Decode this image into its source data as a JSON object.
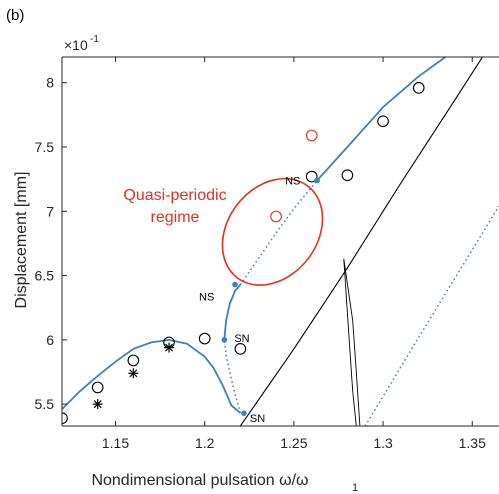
{
  "panel_label": "(b)",
  "chart_data": {
    "type": "scatter",
    "xlabel": "Nondimensional pulsation ω/ω",
    "xlabel_sub": "1",
    "ylabel": "Displacement [mm]",
    "y_multiplier": "×10",
    "y_multiplier_exp": "-1",
    "xlim": [
      1.12,
      1.365
    ],
    "ylim": [
      5.33,
      8.2
    ],
    "xticks": [
      1.15,
      1.2,
      1.25,
      1.3,
      1.35
    ],
    "xtick_labels": [
      "1.15",
      "1.2",
      "1.25",
      "1.3",
      "1.35"
    ],
    "yticks": [
      5.5,
      6,
      6.5,
      7,
      7.5,
      8
    ],
    "ytick_labels": [
      "5.5",
      "6",
      "6.5",
      "7",
      "7.5",
      "8"
    ],
    "grid": false,
    "colors": {
      "branch": "#3e7fbf",
      "experiment_qp": "#e8301c",
      "region": "#e8301c",
      "black": "#000000"
    },
    "series": [
      {
        "style": "blue-solid-lower",
        "x": [
          1.12,
          1.13,
          1.14,
          1.15,
          1.16,
          1.17,
          1.18,
          1.19,
          1.2,
          1.205,
          1.21,
          1.215,
          1.22
        ],
        "y": [
          5.46,
          5.6,
          5.72,
          5.83,
          5.93,
          5.98,
          6.0,
          5.97,
          5.87,
          5.78,
          5.65,
          5.49,
          5.43
        ]
      },
      {
        "style": "blue-dotted-unstable-lower",
        "x": [
          1.22,
          1.217,
          1.214,
          1.212,
          1.211
        ],
        "y": [
          5.43,
          5.58,
          5.75,
          5.88,
          6.0
        ]
      },
      {
        "style": "blue-solid-fold",
        "x": [
          1.211,
          1.212,
          1.214,
          1.217,
          1.22
        ],
        "y": [
          6.0,
          6.15,
          6.28,
          6.38,
          6.43
        ]
      },
      {
        "style": "blue-dotted-unstable-middle",
        "x": [
          1.22,
          1.23,
          1.24,
          1.25,
          1.263
        ],
        "y": [
          6.43,
          6.63,
          6.83,
          7.02,
          7.24
        ]
      },
      {
        "style": "blue-solid-upper",
        "x": [
          1.263,
          1.28,
          1.3,
          1.32,
          1.335
        ],
        "y": [
          7.24,
          7.5,
          7.81,
          8.05,
          8.2
        ]
      },
      {
        "style": "blue-dotted-right",
        "x": [
          1.29,
          1.32,
          1.35,
          1.365
        ],
        "y": [
          5.33,
          6.02,
          6.7,
          7.04
        ]
      },
      {
        "style": "black-line-diagonal",
        "x": [
          1.22,
          1.25,
          1.28,
          1.31,
          1.34,
          1.365
        ],
        "y": [
          5.33,
          5.93,
          6.56,
          7.22,
          7.86,
          8.4
        ]
      },
      {
        "style": "black-thin-curve-a",
        "x": [
          1.278,
          1.281,
          1.283,
          1.285
        ],
        "y": [
          6.63,
          6.0,
          5.6,
          5.33
        ]
      },
      {
        "style": "black-thin-curve-b",
        "x": [
          1.278,
          1.283,
          1.285,
          1.287
        ],
        "y": [
          6.63,
          6.15,
          5.75,
          5.33
        ]
      }
    ],
    "experiments_circle": {
      "x": [
        1.12,
        1.14,
        1.16,
        1.18,
        1.2,
        1.22,
        1.26,
        1.28,
        1.3,
        1.32
      ],
      "y": [
        5.39,
        5.63,
        5.84,
        5.98,
        6.01,
        5.93,
        7.27,
        7.28,
        7.7,
        7.96
      ]
    },
    "experiments_circle_red": {
      "x": [
        1.24,
        1.26
      ],
      "y": [
        6.96,
        7.59
      ]
    },
    "experiments_star": {
      "x": [
        1.14,
        1.16,
        1.18
      ],
      "y": [
        5.5,
        5.74,
        5.94
      ]
    },
    "bifurcation_points": [
      {
        "label": "NS",
        "x": 1.263,
        "y": 7.24
      },
      {
        "label": "NS",
        "x": 1.217,
        "y": 6.43
      },
      {
        "label": "SN",
        "x": 1.211,
        "y": 6.0
      },
      {
        "label": "SN",
        "x": 1.222,
        "y": 5.43
      }
    ],
    "region": {
      "label_line1": "Quasi-periodic",
      "label_line2": "regime",
      "center_x": 1.238,
      "center_y": 6.84,
      "rx_data": 0.025,
      "ry_data": 0.45
    }
  }
}
